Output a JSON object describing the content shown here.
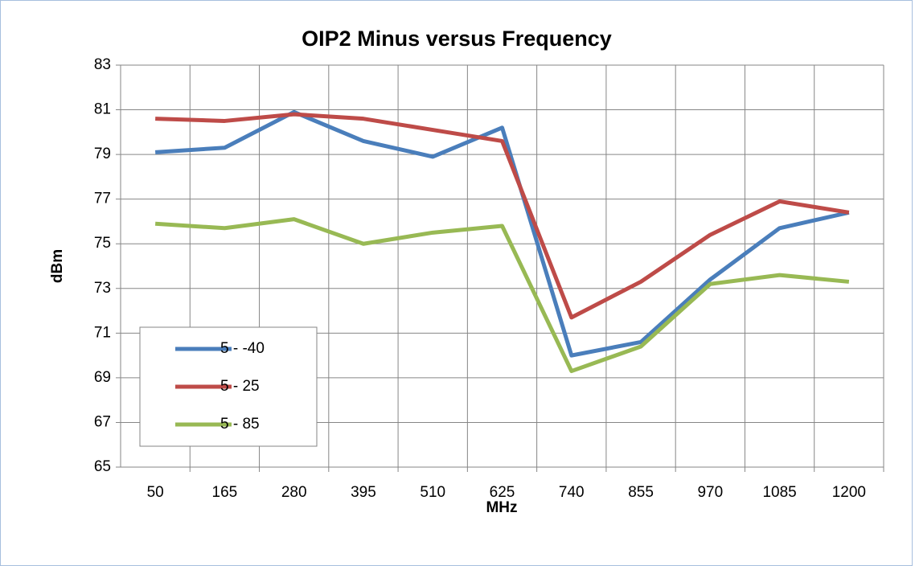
{
  "chart_data": {
    "type": "line",
    "title": "OIP2 Minus versus Frequency",
    "x_label": "MHz",
    "y_label": "dBm",
    "categories": [
      "50",
      "165",
      "280",
      "395",
      "510",
      "625",
      "740",
      "855",
      "970",
      "1085",
      "1200"
    ],
    "series": [
      {
        "name": "5 - -40",
        "color": "#4a7ebb",
        "values": [
          79.1,
          79.3,
          80.9,
          79.6,
          78.9,
          80.2,
          70.0,
          70.6,
          73.4,
          75.7,
          76.4
        ]
      },
      {
        "name": "5 - 25",
        "color": "#be4b48",
        "values": [
          80.6,
          80.5,
          80.8,
          80.6,
          80.1,
          79.6,
          71.7,
          73.3,
          75.4,
          76.9,
          76.4
        ]
      },
      {
        "name": "5 - 85",
        "color": "#98b954",
        "values": [
          75.9,
          75.7,
          76.1,
          75.0,
          75.5,
          75.8,
          69.3,
          70.4,
          73.2,
          73.6,
          73.3
        ]
      }
    ],
    "ylim": [
      65,
      83
    ],
    "yticks": [
      65,
      67,
      69,
      71,
      73,
      75,
      77,
      79,
      81,
      83
    ],
    "grid": true,
    "legend": "lower left"
  }
}
